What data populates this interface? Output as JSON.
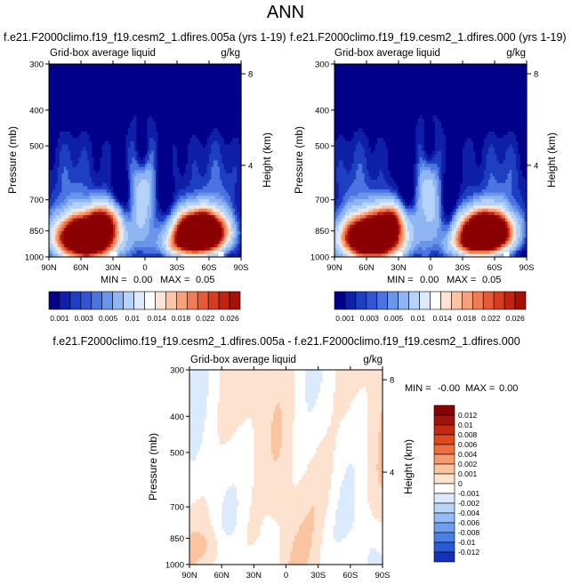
{
  "page": {
    "title": "ANN"
  },
  "colors": {
    "seq": [
      "#00008b",
      "#0e1fa8",
      "#1f3fc2",
      "#3355d4",
      "#4b74e0",
      "#6a96ea",
      "#8fb6f2",
      "#b5d3f8",
      "#dbeafd",
      "#ffffff",
      "#fde4d2",
      "#fbc4a4",
      "#f6a17a",
      "#f07c54",
      "#e85a35",
      "#d83c1e",
      "#c02410",
      "#a51007",
      "#8b0000"
    ],
    "diff": [
      "#00008b",
      "#1432b8",
      "#2a5bd6",
      "#4a7fe4",
      "#6e9eed",
      "#93bbf4",
      "#b8d5fa",
      "#dbeafd",
      "#ffffff",
      "#fde3cf",
      "#fbc4a0",
      "#f59c6e",
      "#ec7040",
      "#dd4a1e",
      "#c42a0c",
      "#a0130a",
      "#8b0000"
    ]
  },
  "chart_data": [
    {
      "type": "heatmap",
      "name": "case",
      "panel_title": "f.e21.F2000climo.f19_f19.cesm2_1.dfires.005a (yrs 1-19)",
      "left_title": "Grid-box average liquid",
      "units": "g/kg",
      "ylabel": "Pressure (mb)",
      "ylabel_right": "Height (km)",
      "x_ticks": [
        "90N",
        "60N",
        "30N",
        "0",
        "30S",
        "60S",
        "90S"
      ],
      "y_ticks": [
        "300",
        "400",
        "500",
        "700",
        "850",
        "1000"
      ],
      "height_ticks": [
        "8",
        "4"
      ],
      "min_label": "MIN =",
      "min_value": "0.00",
      "max_label": "MAX =",
      "max_value": "0.05",
      "colorbar_labels": [
        "0.001",
        "0.003",
        "0.005",
        "0.01",
        "0.014",
        "0.018",
        "0.022",
        "0.026"
      ],
      "level_range": [
        0,
        0.05
      ]
    },
    {
      "type": "heatmap",
      "name": "reference",
      "panel_title": "f.e21.F2000climo.f19_f19.cesm2_1.dfires.000 (yrs 1-19)",
      "left_title": "Grid-box average liquid",
      "units": "g/kg",
      "ylabel": "Pressure (mb)",
      "ylabel_right": "Height (km)",
      "x_ticks": [
        "90N",
        "60N",
        "30N",
        "0",
        "30S",
        "60S",
        "90S"
      ],
      "y_ticks": [
        "300",
        "400",
        "500",
        "700",
        "850",
        "1000"
      ],
      "height_ticks": [
        "8",
        "4"
      ],
      "min_label": "MIN =",
      "min_value": "0.00",
      "max_label": "MAX =",
      "max_value": "0.05",
      "colorbar_labels": [
        "0.001",
        "0.003",
        "0.005",
        "0.01",
        "0.014",
        "0.018",
        "0.022",
        "0.026"
      ],
      "level_range": [
        0,
        0.05
      ]
    },
    {
      "type": "heatmap",
      "name": "difference",
      "panel_title": "f.e21.F2000climo.f19_f19.cesm2_1.dfires.005a - f.e21.F2000climo.f19_f19.cesm2_1.dfires.000",
      "left_title": "Grid-box average liquid",
      "units": "g/kg",
      "ylabel": "Pressure (mb)",
      "ylabel_right": "Height (km)",
      "x_ticks": [
        "90N",
        "60N",
        "30N",
        "0",
        "30S",
        "60S",
        "90S"
      ],
      "y_ticks": [
        "300",
        "400",
        "500",
        "700",
        "850",
        "1000"
      ],
      "height_ticks": [
        "8",
        "4"
      ],
      "min_label": "MIN =",
      "min_value": "-0.00",
      "max_label": "MAX =",
      "max_value": "0.00",
      "colorbar_labels": [
        "0.012",
        "0.01",
        "0.008",
        "0.006",
        "0.004",
        "0.002",
        "0.001",
        "0",
        "-0.001",
        "-0.002",
        "-0.004",
        "-0.006",
        "-0.008",
        "-0.01",
        "-0.012"
      ],
      "level_range": [
        -0.012,
        0.012
      ]
    }
  ]
}
